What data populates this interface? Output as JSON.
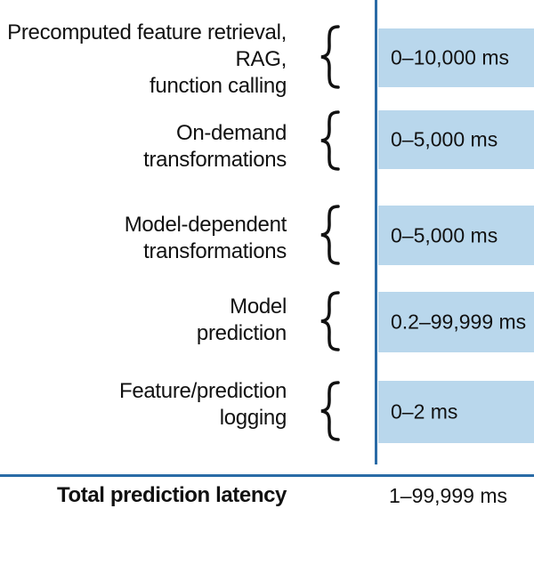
{
  "stages": [
    {
      "label_lines": [
        "Precomputed feature retrieval,",
        "RAG,",
        "function calling"
      ],
      "latency": "0–10,000 ms"
    },
    {
      "label_lines": [
        "On-demand",
        "transformations"
      ],
      "latency": "0–5,000 ms"
    },
    {
      "label_lines": [
        "Model-dependent",
        "transformations"
      ],
      "latency": "0–5,000 ms"
    },
    {
      "label_lines": [
        "Model",
        "prediction"
      ],
      "latency": "0.2–99,999 ms"
    },
    {
      "label_lines": [
        "Feature/prediction",
        "logging"
      ],
      "latency": "0–2 ms"
    }
  ],
  "total": {
    "label": "Total prediction latency",
    "latency": "1–99,999 ms"
  },
  "colors": {
    "bar_fill": "#b9d7ec",
    "rule": "#2a6ba6",
    "text": "#111111"
  }
}
